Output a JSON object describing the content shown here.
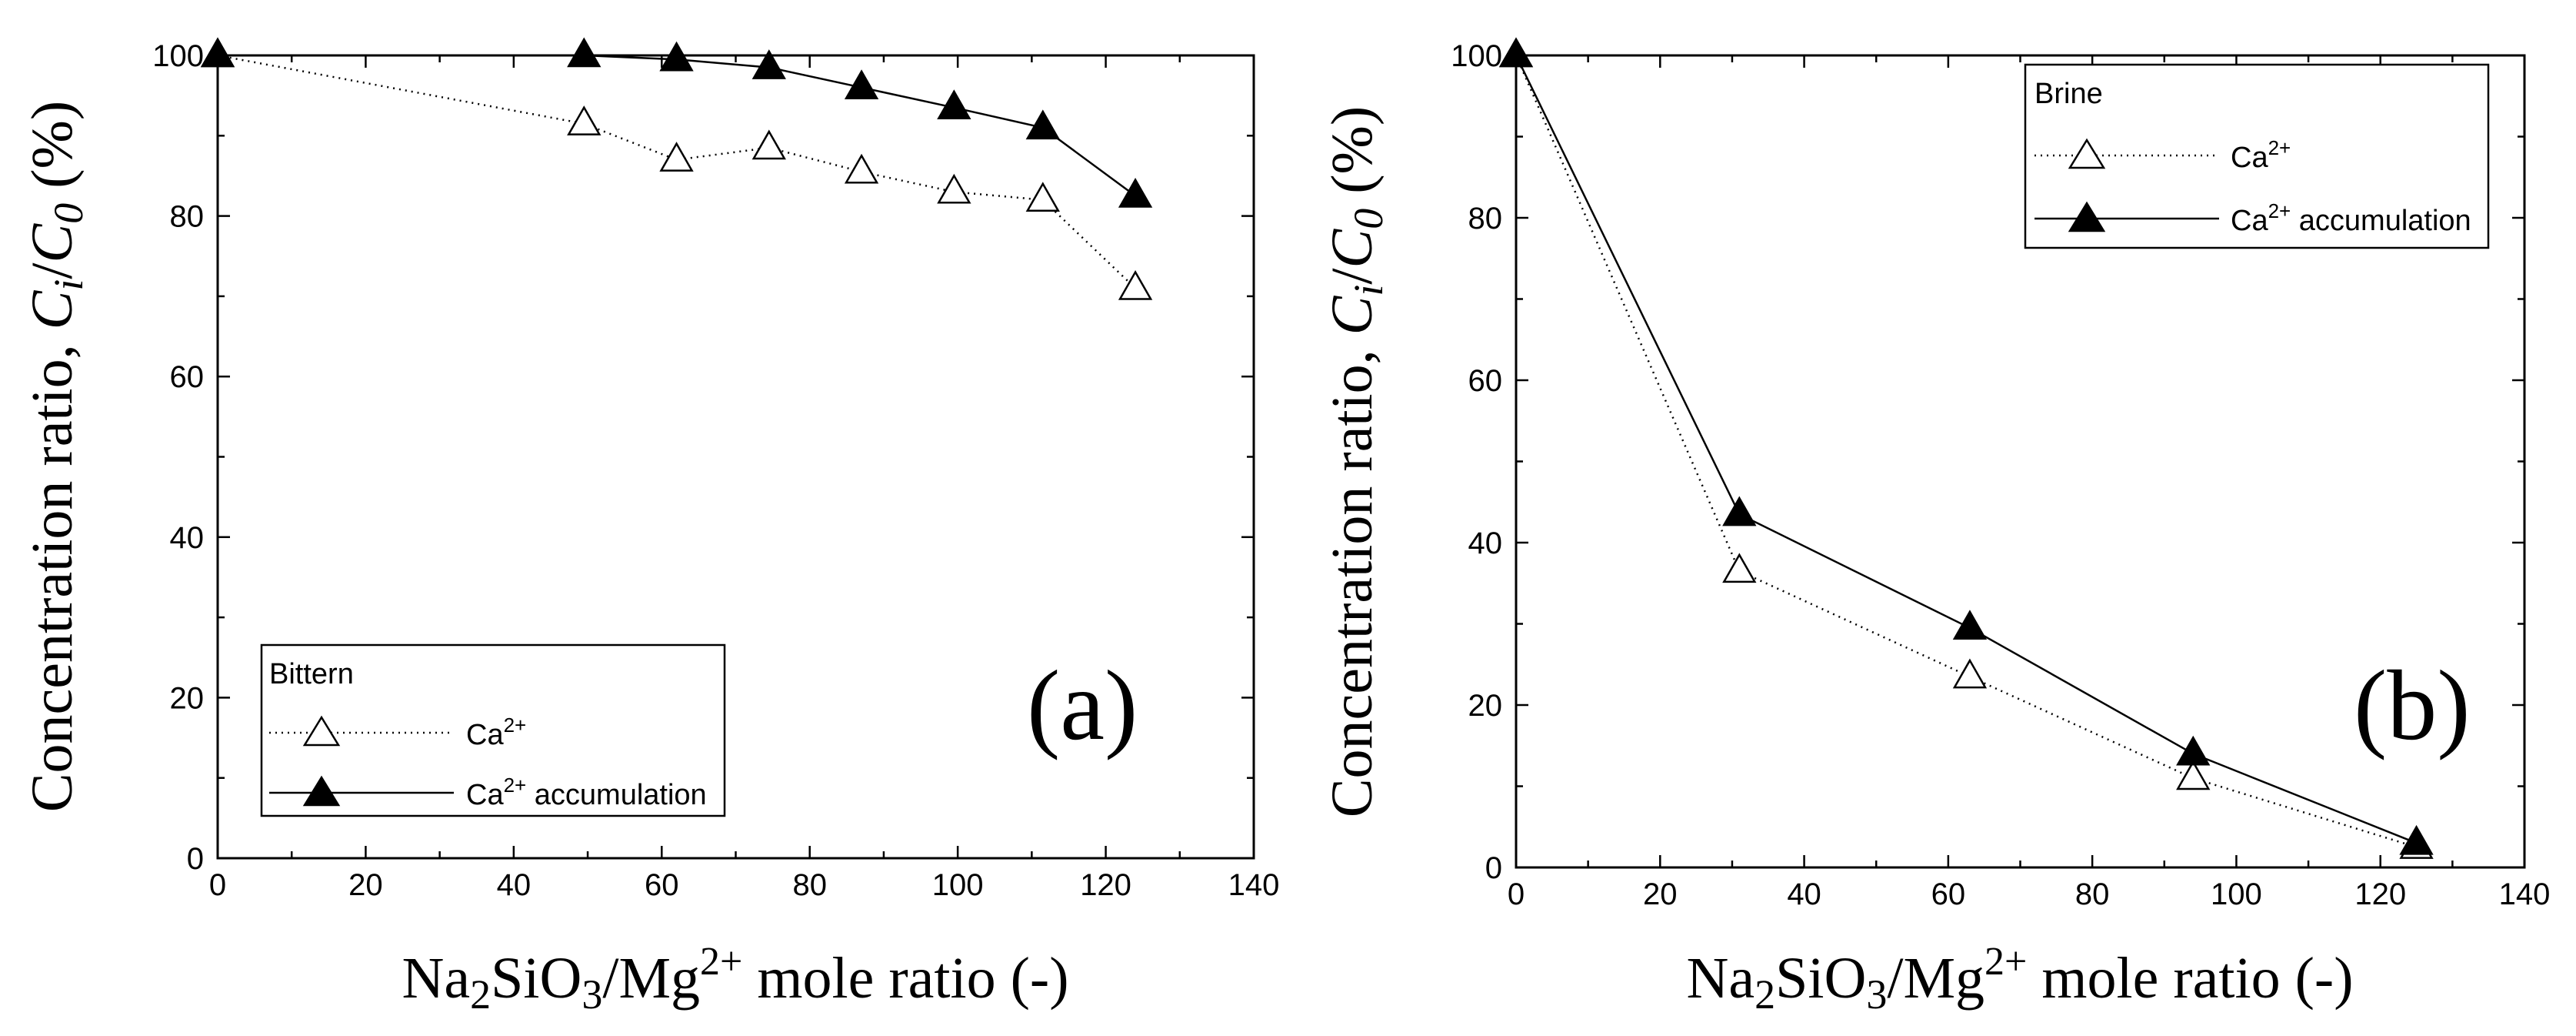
{
  "chart_data": [
    {
      "type": "line",
      "panel_label": "(a)",
      "xlabel": "Na2SiO3/Mg2+ mole ratio  (-)",
      "ylabel": "Concentration ratio, Ci/C0 (%)",
      "xlabel_parts": {
        "pre": "Na",
        "sub1": "2",
        "mid": "SiO",
        "sub2": "3",
        "post1": "/Mg",
        "sup": "2+",
        "post2": " mole ratio  (-)"
      },
      "ylabel_parts": {
        "pre": "Concentration ratio, ",
        "c1": "C",
        "sub1": "i",
        "slash": "/",
        "c2": "C",
        "sub2": "0",
        "post": " (%)"
      },
      "xlim": [
        0,
        140
      ],
      "ylim": [
        0,
        100
      ],
      "xticks": [
        "0",
        "20",
        "40",
        "60",
        "80",
        "100",
        "120",
        "140"
      ],
      "yticks": [
        "0",
        "20",
        "40",
        "60",
        "80",
        "100"
      ],
      "legend": {
        "title": "Bittern",
        "placement": "bottom-left",
        "entries": [
          {
            "base": "Ca",
            "sup": "2+",
            "rest": ""
          },
          {
            "base": "Ca",
            "sup": "2+",
            "rest": " accumulation"
          }
        ]
      },
      "series": [
        {
          "name": "Ca2+",
          "style": "dotted",
          "marker": "open-triangle",
          "x": [
            0,
            49.5,
            62,
            74.5,
            87,
            99.5,
            111.5,
            124
          ],
          "y": [
            100,
            91.5,
            87,
            88.5,
            85.5,
            83,
            82,
            71
          ]
        },
        {
          "name": "Ca2+ accumulation",
          "style": "solid",
          "marker": "filled-triangle",
          "x": [
            0,
            49.5,
            62,
            74.5,
            87,
            99.5,
            111.5,
            124
          ],
          "y": [
            100,
            100,
            99.5,
            98.5,
            96,
            93.5,
            91,
            82.5
          ]
        }
      ]
    },
    {
      "type": "line",
      "panel_label": "(b)",
      "xlabel": "Na2SiO3/Mg2+ mole ratio  (-)",
      "ylabel": "Concentration ratio, Ci/C0 (%)",
      "xlabel_parts": {
        "pre": "Na",
        "sub1": "2",
        "mid": "SiO",
        "sub2": "3",
        "post1": "/Mg",
        "sup": "2+",
        "post2": " mole ratio  (-)"
      },
      "ylabel_parts": {
        "pre": "Concentration ratio, ",
        "c1": "C",
        "sub1": "i",
        "slash": "/",
        "c2": "C",
        "sub2": "0",
        "post": " (%)"
      },
      "xlim": [
        0,
        140
      ],
      "ylim": [
        0,
        100
      ],
      "xticks": [
        "0",
        "20",
        "40",
        "60",
        "80",
        "100",
        "120",
        "140"
      ],
      "yticks": [
        "0",
        "20",
        "40",
        "60",
        "80",
        "100"
      ],
      "legend": {
        "title": "Brine",
        "placement": "top-right",
        "entries": [
          {
            "base": "Ca",
            "sup": "2+",
            "rest": ""
          },
          {
            "base": "Ca",
            "sup": "2+",
            "rest": " accumulation"
          }
        ]
      },
      "series": [
        {
          "name": "Ca2+",
          "style": "dotted",
          "marker": "open-triangle",
          "x": [
            0,
            31,
            63,
            94,
            125
          ],
          "y": [
            100,
            36.5,
            23.5,
            11,
            2.5
          ]
        },
        {
          "name": "Ca2+ accumulation",
          "style": "solid",
          "marker": "filled-triangle",
          "x": [
            0,
            31,
            63,
            94,
            125
          ],
          "y": [
            100,
            43.5,
            29.5,
            14,
            3
          ]
        }
      ]
    }
  ]
}
